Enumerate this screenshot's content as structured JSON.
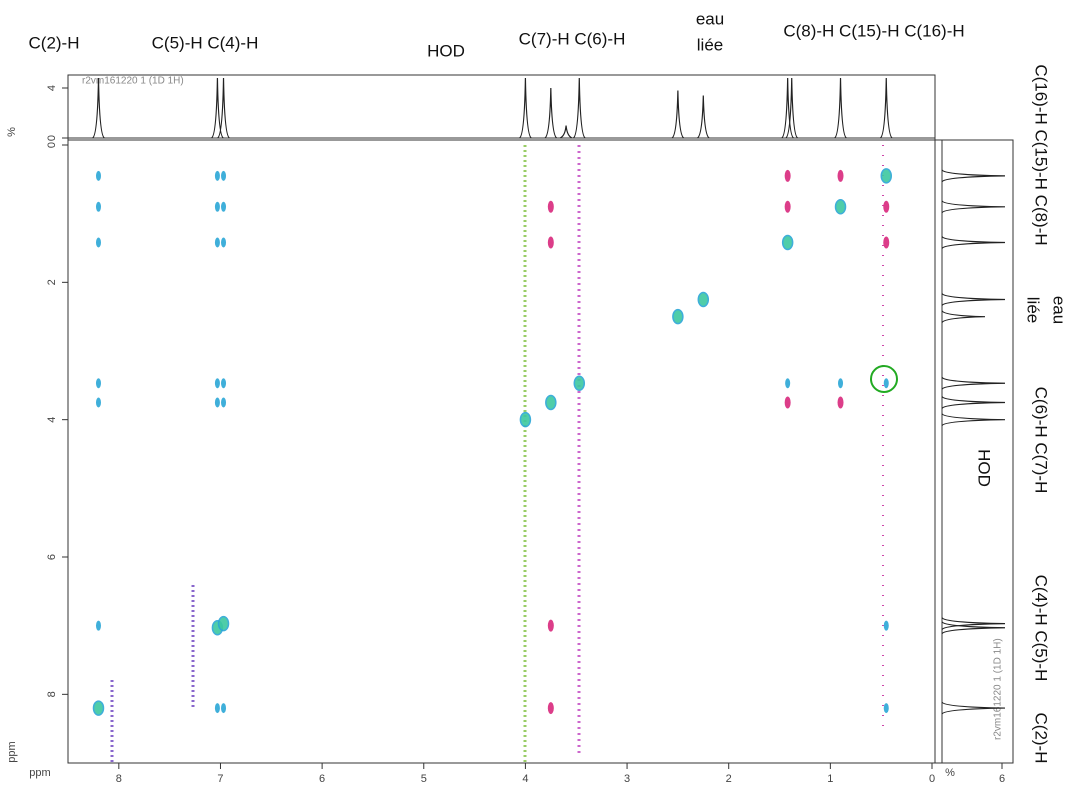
{
  "chart_data": {
    "type": "nmr2d",
    "xlim": [
      8.5,
      0
    ],
    "xticks": [
      8,
      7,
      6,
      5,
      4,
      3,
      2,
      1,
      0
    ],
    "ylim": [
      0,
      9
    ],
    "yticks": [
      0,
      2,
      4,
      6,
      8
    ],
    "axis_unit": "ppm",
    "diagonal_peaks": {
      "color": "#3cc8a0",
      "x": [
        8.2,
        7.03,
        6.97,
        4.0,
        3.75,
        3.47,
        2.5,
        2.25,
        1.42,
        0.9,
        0.45
      ],
      "y": [
        8.2,
        7.03,
        6.97,
        4.0,
        3.75,
        3.47,
        2.5,
        2.25,
        1.42,
        0.9,
        0.45
      ]
    },
    "cross_peaks_positive": {
      "color": "#2aa6d6",
      "x": [
        8.2,
        8.2,
        8.2,
        8.2,
        8.2,
        8.2,
        7.03,
        7.03,
        7.03,
        7.03,
        7.03,
        7.03,
        6.97,
        6.97,
        6.97,
        6.97,
        6.97,
        6.97,
        1.42,
        0.9,
        0.45,
        0.45,
        0.45
      ],
      "y": [
        0.45,
        0.9,
        1.42,
        3.47,
        3.75,
        7.0,
        0.45,
        0.9,
        1.42,
        3.47,
        3.75,
        8.2,
        0.45,
        0.9,
        1.42,
        3.47,
        3.75,
        8.2,
        3.47,
        3.47,
        3.47,
        7.0,
        8.2
      ]
    },
    "cross_peaks_negative": {
      "color": "#d8287c",
      "x": [
        1.42,
        0.9,
        3.75,
        3.75,
        3.75,
        3.75,
        1.42,
        1.42,
        0.9,
        0.45,
        0.45
      ],
      "y": [
        3.75,
        3.75,
        1.42,
        0.9,
        7.0,
        8.2,
        0.9,
        0.45,
        0.45,
        0.9,
        1.42
      ]
    },
    "top_spectrum": {
      "label": "r2vm161220 1 (1D 1H)",
      "unit": "%",
      "x": [
        8.2,
        7.03,
        6.97,
        4.0,
        3.75,
        3.6,
        3.47,
        2.5,
        2.25,
        1.42,
        1.38,
        0.9,
        0.45
      ],
      "values": [
        4.8,
        4.8,
        4.8,
        4.8,
        4.0,
        1.0,
        4.8,
        3.8,
        3.4,
        4.8,
        4.8,
        4.8,
        4.8
      ],
      "ylim": [
        0,
        4.8
      ],
      "yticks": [
        0,
        4
      ]
    },
    "right_spectrum": {
      "label": "r2vm161220 1 (1D 1H)",
      "unit": "%",
      "y": [
        8.2,
        7.03,
        6.97,
        4.0,
        3.75,
        3.47,
        2.5,
        2.25,
        1.42,
        0.9,
        0.45
      ],
      "values": [
        6.3,
        6.3,
        6.3,
        6.3,
        6.3,
        6.3,
        4.3,
        6.3,
        6.3,
        6.3,
        6.3
      ],
      "xlim": [
        0,
        6.3
      ],
      "xticks": [
        6
      ]
    },
    "top_labels": [
      "C(2)-H",
      "C(5)-H C(4)-H",
      "HOD",
      "C(7)-H C(6)-H",
      "eau",
      "liée",
      "C(8)-H C(15)-H C(16)-H"
    ],
    "right_labels": [
      "C(16)-H C(15)-H C(8)-H",
      "eau",
      "liée",
      "C(6)-H C(7)-H",
      "HOD",
      "C(4)-H C(5)-H",
      "C(2)-H"
    ]
  }
}
